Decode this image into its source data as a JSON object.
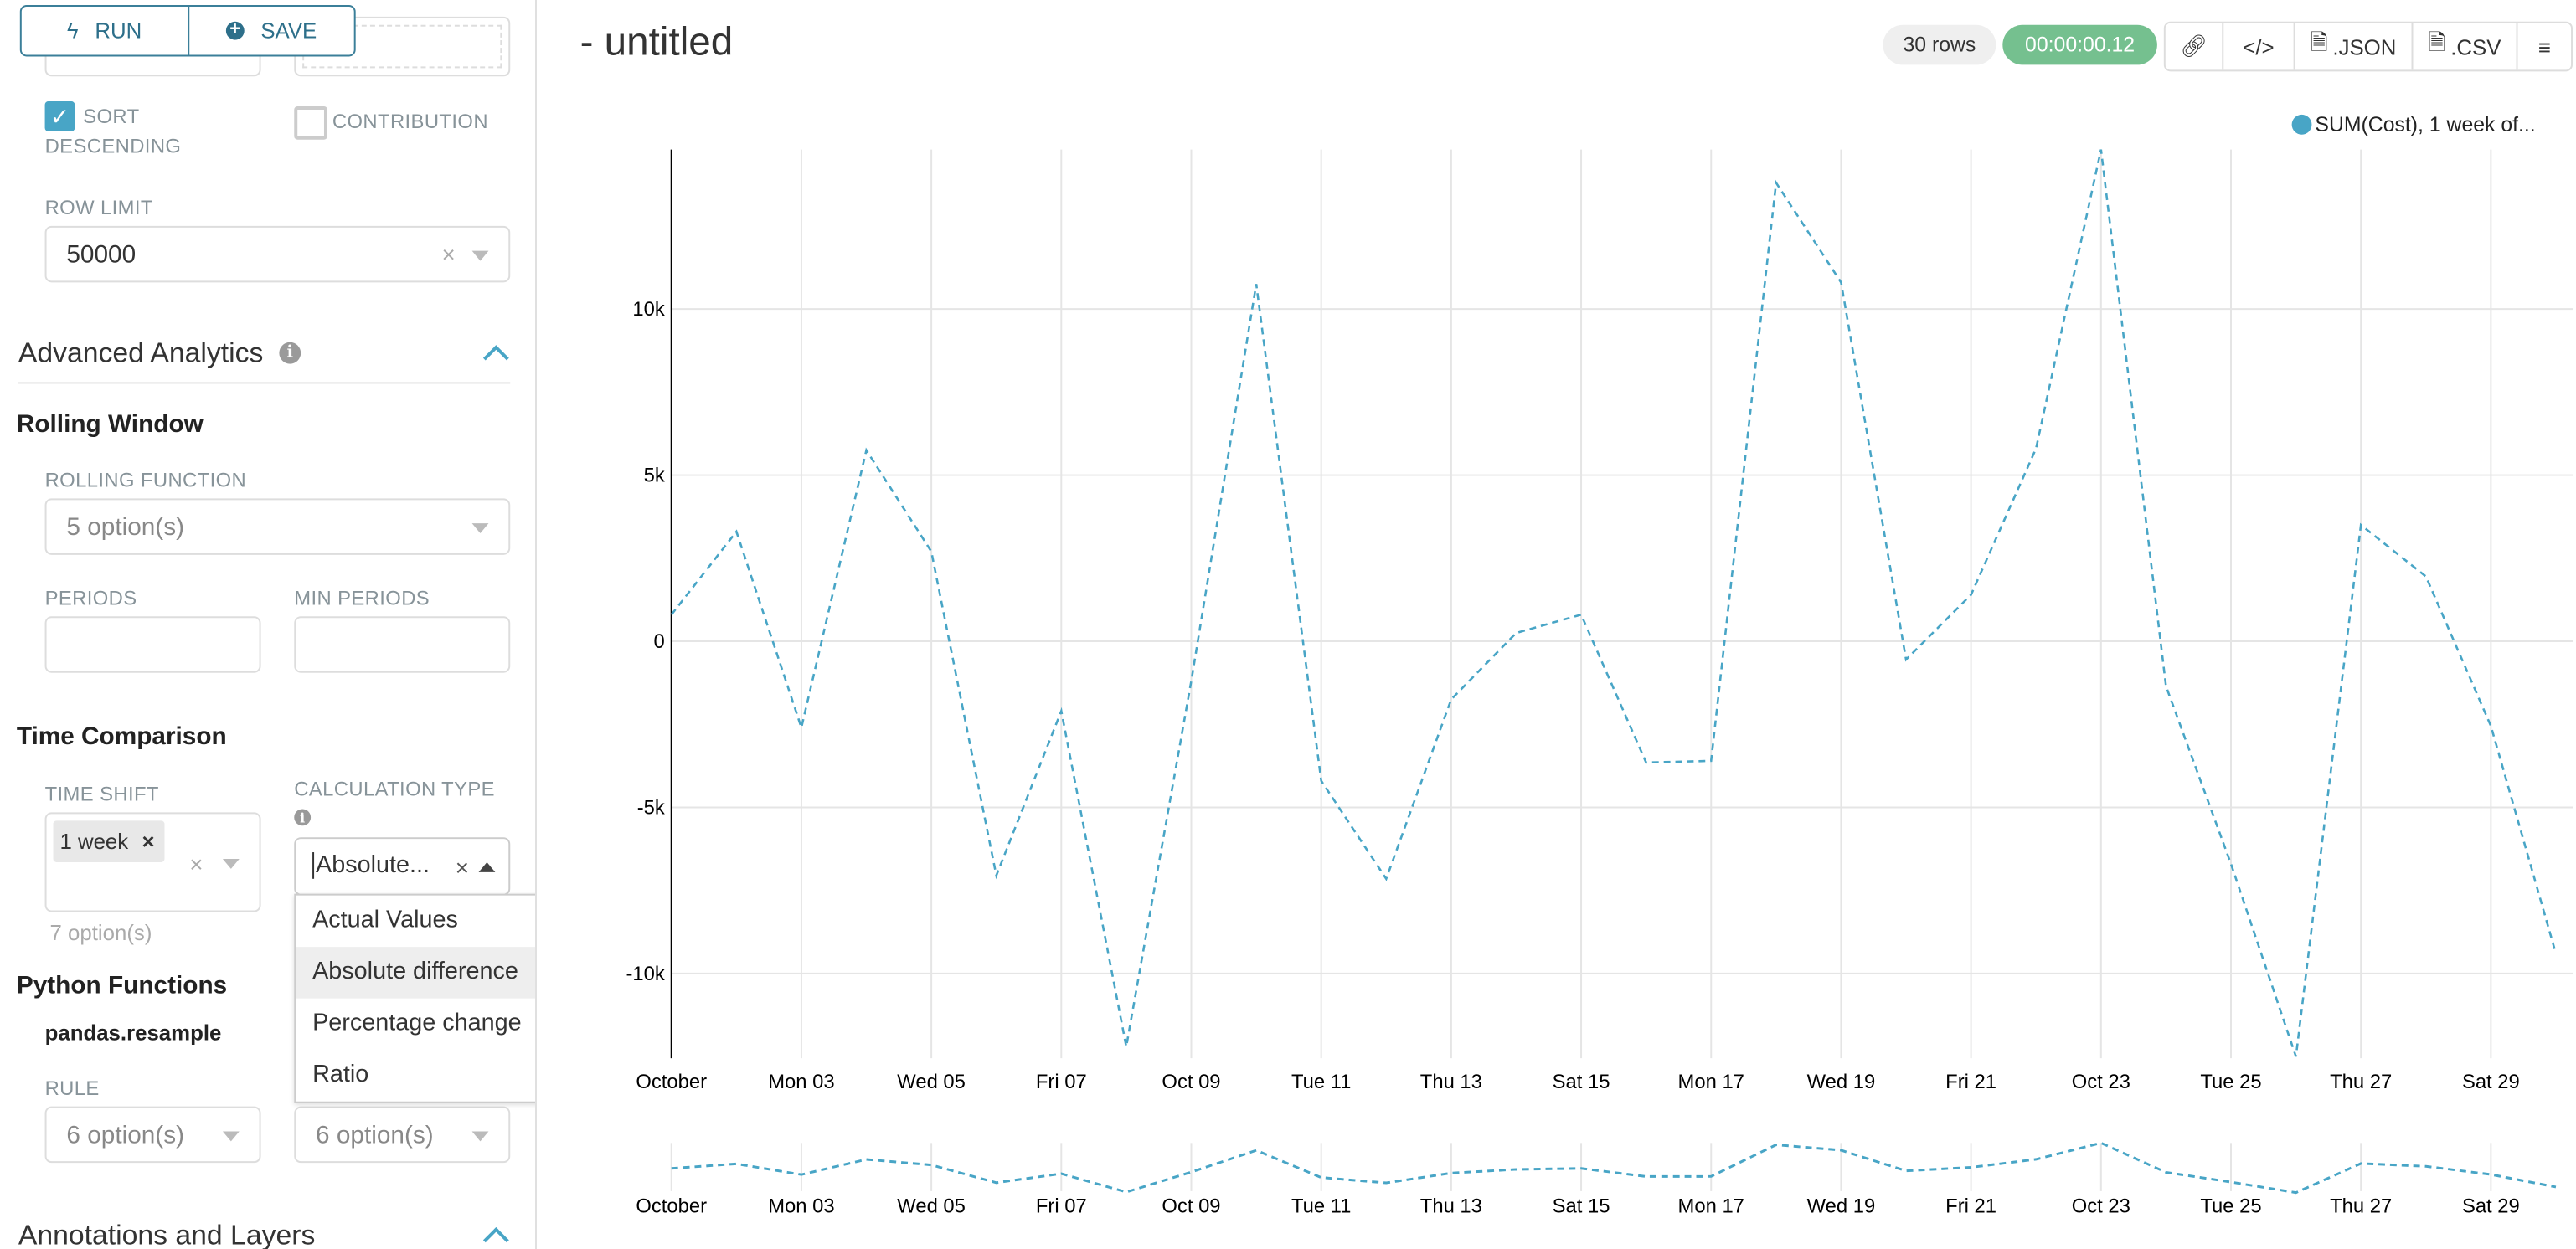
{
  "toolbar": {
    "run_label": "RUN",
    "save_label": "SAVE"
  },
  "sidebar": {
    "top_partial_value": "7 option(s)",
    "sort_descending": {
      "label_line1": "SORT",
      "label_line2": "DESCENDING",
      "checked": true
    },
    "contribution": {
      "label": "CONTRIBUTION",
      "checked": false
    },
    "row_limit": {
      "label": "ROW LIMIT",
      "value": "50000"
    },
    "advanced_analytics": {
      "title": "Advanced Analytics",
      "rolling_window": {
        "title": "Rolling Window",
        "rolling_function": {
          "label": "ROLLING FUNCTION",
          "placeholder": "5 option(s)"
        },
        "periods": {
          "label": "PERIODS",
          "value": ""
        },
        "min_periods": {
          "label": "MIN PERIODS",
          "value": ""
        }
      },
      "time_comparison": {
        "title": "Time Comparison",
        "time_shift": {
          "label": "TIME SHIFT",
          "tags": [
            "1 week"
          ],
          "hint": "7 option(s)"
        },
        "calculation_type": {
          "label": "CALCULATION TYPE",
          "value": "Absolute...",
          "options": [
            "Actual Values",
            "Absolute difference",
            "Percentage change",
            "Ratio"
          ],
          "highlighted": "Absolute difference"
        }
      },
      "python_functions": {
        "title": "Python Functions",
        "subtitle": "pandas.resample",
        "rule": {
          "label": "RULE",
          "placeholder": "6 option(s)"
        },
        "method": {
          "placeholder": "6 option(s)"
        }
      }
    },
    "annotations": {
      "title": "Annotations and Layers"
    }
  },
  "header": {
    "title": "- untitled",
    "rows_badge": "30 rows",
    "timer": "00:00:00.12",
    "actions": {
      "link": "link-icon",
      "embed": "code-icon",
      "json": ".JSON",
      "csv": ".CSV",
      "menu": "menu-icon"
    }
  },
  "colors": {
    "accent": "#48a5c6",
    "timer_green": "#75c08f",
    "button_border": "#3b7f99"
  },
  "chart_data": {
    "type": "line",
    "legend": {
      "entries": [
        "SUM(Cost), 1 week of..."
      ],
      "position": "top-right"
    },
    "line_style": "dashed",
    "series": [
      {
        "name": "SUM(Cost), 1 week of...",
        "color": "#48a5c6",
        "x": [
          "2016-10-01",
          "2016-10-02",
          "2016-10-03",
          "2016-10-04",
          "2016-10-05",
          "2016-10-06",
          "2016-10-07",
          "2016-10-08",
          "2016-10-09",
          "2016-10-10",
          "2016-10-11",
          "2016-10-12",
          "2016-10-13",
          "2016-10-14",
          "2016-10-15",
          "2016-10-16",
          "2016-10-17",
          "2016-10-18",
          "2016-10-19",
          "2016-10-20",
          "2016-10-21",
          "2016-10-22",
          "2016-10-23",
          "2016-10-24",
          "2016-10-25",
          "2016-10-26",
          "2016-10-27",
          "2016-10-28",
          "2016-10-29",
          "2016-10-30"
        ],
        "values": [
          800,
          3300,
          -2600,
          5750,
          2700,
          -7050,
          -2100,
          -12200,
          -1200,
          10750,
          -4200,
          -7150,
          -1750,
          250,
          800,
          -3650,
          -3600,
          13800,
          10800,
          -550,
          1400,
          5800,
          14800,
          -1350,
          -6700,
          -12500,
          3500,
          1950,
          -2550,
          -9400
        ]
      }
    ],
    "x_tick_labels": [
      "October",
      "Mon 03",
      "Wed 05",
      "Fri 07",
      "Oct 09",
      "Tue 11",
      "Thu 13",
      "Sat 15",
      "Mon 17",
      "Wed 19",
      "Fri 21",
      "Oct 23",
      "Tue 25",
      "Thu 27",
      "Sat 29"
    ],
    "y_tick_labels": [
      "10k",
      "5k",
      "0",
      "-5k",
      "-10k"
    ],
    "y_ticks": [
      10000,
      5000,
      0,
      -5000,
      -10000
    ],
    "ylim": [
      -12600,
      14800
    ],
    "grid": true,
    "brush": true
  }
}
